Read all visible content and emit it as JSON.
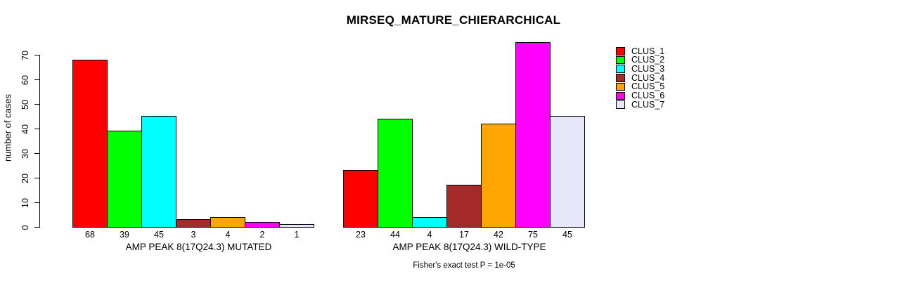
{
  "title": "MIRSEQ_MATURE_CHIERARCHICAL",
  "chart_data": {
    "type": "bar",
    "title": "MIRSEQ_MATURE_CHIERARCHICAL",
    "ylabel": "number of cases",
    "xlabel": "",
    "ylim": [
      0,
      75
    ],
    "yticks": [
      0,
      10,
      20,
      30,
      40,
      50,
      60,
      70
    ],
    "grid": false,
    "legend_position": "right",
    "bar_borders": "#000000",
    "categories": [
      "AMP PEAK 8(17Q24.3) MUTATED",
      "AMP PEAK 8(17Q24.3) WILD-TYPE"
    ],
    "series": [
      {
        "name": "CLUS_1",
        "color": "#FF0000",
        "values": [
          68,
          23
        ]
      },
      {
        "name": "CLUS_2",
        "color": "#00FF00",
        "values": [
          39,
          44
        ]
      },
      {
        "name": "CLUS_3",
        "color": "#00FFFF",
        "values": [
          45,
          4
        ]
      },
      {
        "name": "CLUS_4",
        "color": "#A52A2A",
        "values": [
          3,
          17
        ]
      },
      {
        "name": "CLUS_5",
        "color": "#FFA500",
        "values": [
          4,
          42
        ]
      },
      {
        "name": "CLUS_6",
        "color": "#FF00FF",
        "values": [
          2,
          75
        ]
      },
      {
        "name": "CLUS_7",
        "color": "#E6E6FA",
        "values": [
          1,
          45
        ]
      }
    ],
    "value_labels_shown": true,
    "annotation": "Fisher's exact test P = 1e-05"
  }
}
